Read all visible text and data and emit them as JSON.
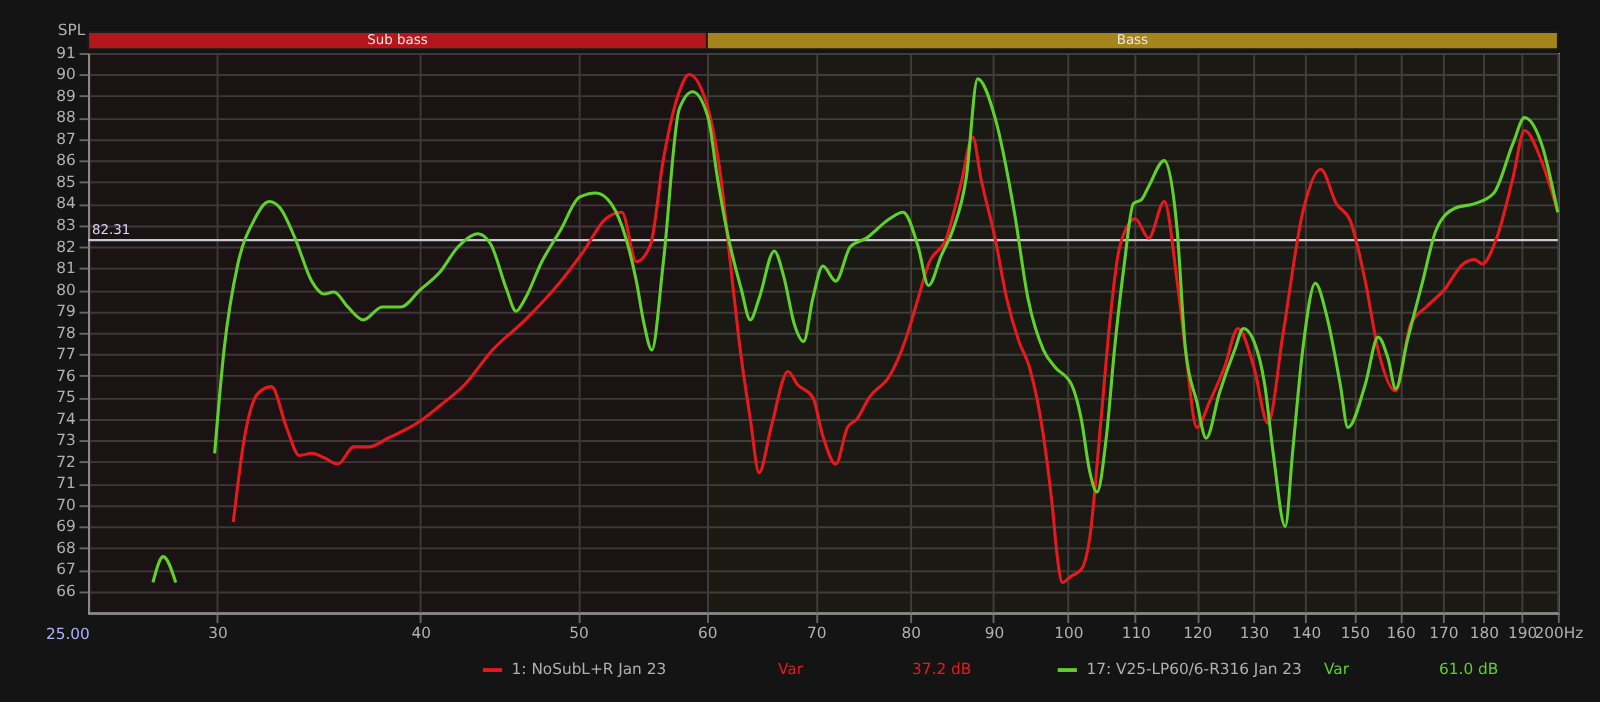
{
  "chart_data": {
    "type": "line",
    "ylabel": "SPL",
    "log": "x",
    "xlim": [
      25,
      200
    ],
    "ylim": [
      65,
      91
    ],
    "xticks": [
      30,
      40,
      50,
      60,
      70,
      80,
      90,
      100,
      110,
      120,
      130,
      140,
      150,
      160,
      170,
      180,
      190,
      {
        "value": 200,
        "label": "200Hz"
      }
    ],
    "yticks": [
      66,
      67,
      68,
      69,
      70,
      71,
      72,
      73,
      74,
      75,
      76,
      77,
      78,
      79,
      80,
      81,
      82,
      83,
      84,
      85,
      86,
      87,
      88,
      89,
      90,
      91
    ],
    "grid": true,
    "legend": "bottom",
    "line_style": "solid",
    "marker": "none",
    "series": [
      {
        "name": "1: NoSubL+R Jan 23",
        "color": "#e8191e",
        "x": [
          30.7,
          31.2,
          31.8,
          32.4,
          33.1,
          33.7,
          34.3,
          34.9,
          35.6,
          36.4,
          37.2,
          38.2,
          40.0,
          41.1,
          42.6,
          44.3,
          46.4,
          48.8,
          50.4,
          52.0,
          53.2,
          54.3,
          55.4,
          56.4,
          57.7,
          58.5,
          60.1,
          61.2,
          62.2,
          62.9,
          63.8,
          64.6,
          65.7,
          67.3,
          68.2,
          69.7,
          70.7,
          72.0,
          73.2,
          74.2,
          75.5,
          77.7,
          79.4,
          80.9,
          82.1,
          84.2,
          86.0,
          87.4,
          88.4,
          90.2,
          91.7,
          93.3,
          94.7,
          96.6,
          97.8,
          98.5,
          99.2,
          100.5,
          101.9,
          103.1,
          104.8,
          106.2,
          107.6,
          110.0,
          112.1,
          114.6,
          116.7,
          118.1,
          120.0,
          122.2,
          124.8,
          127.2,
          130.1,
          132.7,
          135.6,
          139.4,
          143.0,
          146.2,
          149.1,
          152.3,
          155.1,
          159.0,
          162.4,
          166.0,
          170.3,
          174.9,
          177.8,
          179.7,
          183.4,
          187.7,
          190.8,
          195.4,
          200
        ],
        "values": [
          69.2,
          73.2,
          75.2,
          75.5,
          73.6,
          72.3,
          72.4,
          72.2,
          71.9,
          72.7,
          72.7,
          73.1,
          73.9,
          74.6,
          75.6,
          77.2,
          78.6,
          80.4,
          81.8,
          83.3,
          83.6,
          81.3,
          82.1,
          86.0,
          89.2,
          90.0,
          88.4,
          85.2,
          80.4,
          77.2,
          74.0,
          71.5,
          73.6,
          76.2,
          75.6,
          75.0,
          73.2,
          71.9,
          73.6,
          74.0,
          75.0,
          76.0,
          77.6,
          79.6,
          81.2,
          82.4,
          85.0,
          87.1,
          85.2,
          82.4,
          79.6,
          77.6,
          76.4,
          73.2,
          70.0,
          67.6,
          66.4,
          66.7,
          67.0,
          68.4,
          74.0,
          78.8,
          82.0,
          83.3,
          82.4,
          84.1,
          80.4,
          77.2,
          73.6,
          74.8,
          76.4,
          78.2,
          76.4,
          73.8,
          78.0,
          83.6,
          85.6,
          84.0,
          83.2,
          80.4,
          77.2,
          75.3,
          78.4,
          79.2,
          80.0,
          81.2,
          81.4,
          81.2,
          82.4,
          85.2,
          87.4,
          86.0,
          83.6
        ]
      },
      {
        "name": "17: V25-LP60/6-R316 Jan 23",
        "color": "#5fd12a",
        "x": [
          27.4,
          27.8,
          28.3,
          29.0,
          29.9,
          30.3,
          30.9,
          31.6,
          32.3,
          32.8,
          33.5,
          34.3,
          34.9,
          35.4,
          36.1,
          36.9,
          37.9,
          38.9,
          40.0,
          41.1,
          42.2,
          43.4,
          44.2,
          45.2,
          45.8,
          46.4,
          47.5,
          48.8,
          50.1,
          51.3,
          52.4,
          53.5,
          54.3,
          54.9,
          55.5,
          56.4,
          57.7,
          58.8,
          60.1,
          60.9,
          61.7,
          63.0,
          63.8,
          64.6,
          66.0,
          66.9,
          67.9,
          68.8,
          69.7,
          70.7,
          72.0,
          73.5,
          75.2,
          77.7,
          79.2,
          80.9,
          82.1,
          83.6,
          85.0,
          86.6,
          88.0,
          90.2,
          92.7,
          94.5,
          96.6,
          98.2,
          100.5,
          101.9,
          103.1,
          104.2,
          105.6,
          106.8,
          108.3,
          109.7,
          111.0,
          112.1,
          114.6,
          116.7,
          118.1,
          120.0,
          121.6,
          123.9,
          126.6,
          128.2,
          130.1,
          132.1,
          133.7,
          136.0,
          137.4,
          139.4,
          141.9,
          144.2,
          147.0,
          148.6,
          152.3,
          155.1,
          157.3,
          159.0,
          161.6,
          165.2,
          168.4,
          173.0,
          177.8,
          182.7,
          187.7,
          190.8,
          195.4,
          200
        ],
        "values": [
          66.4,
          67.6,
          66.4,
          null,
          72.4,
          77.2,
          81.2,
          83.2,
          84.1,
          83.8,
          82.4,
          80.4,
          79.8,
          79.9,
          79.2,
          78.6,
          79.2,
          79.2,
          80.0,
          80.8,
          82.0,
          82.6,
          82.1,
          80.0,
          79.0,
          79.6,
          81.3,
          82.8,
          84.3,
          84.5,
          84.0,
          82.4,
          80.4,
          78.4,
          77.2,
          81.2,
          88.4,
          89.2,
          88.0,
          85.2,
          82.8,
          80.0,
          78.6,
          79.6,
          81.8,
          80.6,
          78.4,
          77.6,
          79.6,
          81.1,
          80.4,
          82.0,
          82.4,
          83.3,
          83.6,
          82.0,
          80.2,
          81.6,
          82.8,
          85.2,
          89.8,
          88.0,
          83.6,
          79.6,
          77.2,
          76.4,
          75.6,
          74.0,
          71.6,
          70.6,
          73.2,
          77.2,
          81.2,
          84.0,
          84.2,
          84.8,
          86.0,
          82.8,
          77.2,
          74.8,
          73.1,
          75.2,
          77.2,
          78.2,
          77.6,
          75.6,
          72.4,
          69.0,
          72.4,
          77.2,
          80.3,
          78.8,
          75.6,
          73.6,
          75.6,
          77.8,
          76.8,
          75.4,
          77.6,
          80.4,
          82.8,
          83.8,
          84.0,
          84.5,
          86.8,
          88.0,
          86.8,
          83.6
        ]
      }
    ],
    "ref_lines": [
      {
        "axis": "y",
        "value": 82.31,
        "label": "82.31",
        "color": "#c8c8d0",
        "line_style": "solid"
      }
    ],
    "bands": [
      {
        "axis": "x",
        "from": 25,
        "to": 60,
        "label": "Sub bass",
        "color": "#b3161b"
      },
      {
        "axis": "x",
        "from": 60,
        "to": 200,
        "label": "Bass",
        "color": "#a5841c"
      }
    ],
    "annotations": [
      "25.00",
      "Var",
      "37.2 dB",
      "Var",
      "61.0 dB"
    ]
  }
}
